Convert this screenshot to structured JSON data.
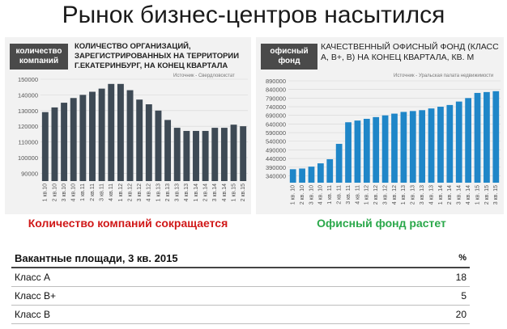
{
  "title": "Рынок бизнес-центров насытился",
  "left_panel": {
    "tag": "количество компаний",
    "title": "КОЛИЧЕСТВО ОРГАНИЗАЦИЙ, ЗАРЕГИСТРИРОВАННЫХ НА ТЕРРИТОРИИ Г.ЕКАТЕРИНБУРГ, НА КОНЕЦ КВАРТАЛА",
    "source": "Источник - Свердловскстат",
    "caption": "Количество компаний сокращается"
  },
  "right_panel": {
    "tag": "офисный фонд",
    "title": "КАЧЕСТВЕННЫЙ ОФИСНЫЙ ФОНД (КЛАСС А, В+, В) НА КОНЕЦ КВАРТАЛА, КВ. М",
    "source": "Источник - Уральская палата недвижимости",
    "caption": "Офисный фонд растет"
  },
  "chart_data": [
    {
      "type": "bar",
      "color": "#3e4a55",
      "categories": [
        "1 кв.10",
        "2 кв.10",
        "3 кв.10",
        "4 кв.10",
        "1 кв.11",
        "2 кв.11",
        "3 кв.11",
        "4 кв.11",
        "1 кв.12",
        "2 кв.12",
        "3 кв.12",
        "4 кв.12",
        "1 кв.13",
        "2 кв.13",
        "3 кв.13",
        "4 кв.13",
        "1 кв.14",
        "2 кв.14",
        "3 кв.14",
        "4 кв.14",
        "1 кв.15",
        "2 кв.15"
      ],
      "values": [
        129000,
        132000,
        135000,
        138000,
        140000,
        142000,
        144000,
        147000,
        147000,
        143000,
        137000,
        134000,
        130000,
        124000,
        119000,
        117000,
        117000,
        117000,
        119000,
        119000,
        121000,
        120000
      ],
      "ylim": [
        85000,
        150000
      ],
      "yticks": [
        "150000",
        "140000",
        "130000",
        "120000",
        "110000",
        "100000",
        "90000"
      ],
      "ytick_values": [
        150000,
        140000,
        130000,
        120000,
        110000,
        100000,
        90000
      ]
    },
    {
      "type": "bar",
      "color": "#1f86c8",
      "categories": [
        "1 кв. 10",
        "2 кв. 10",
        "3 кв. 10",
        "4 кв. 10",
        "1 кв. 11",
        "2 кв. 11",
        "3 кв. 11",
        "4 кв. 11",
        "1 кв. 12",
        "2 кв. 12",
        "3 кв. 12",
        "4 кв. 12",
        "1 кв. 13",
        "2 кв. 13",
        "3 кв. 13",
        "4 кв. 13",
        "1 кв. 14",
        "2 кв. 14",
        "3 кв. 14",
        "4 кв. 14",
        "1 кв. 15",
        "2 кв. 15",
        "3 кв. 15"
      ],
      "values": [
        378000,
        382000,
        393000,
        412000,
        436000,
        525000,
        650000,
        660000,
        670000,
        680000,
        690000,
        700000,
        710000,
        715000,
        720000,
        730000,
        740000,
        750000,
        770000,
        790000,
        820000,
        825000,
        830000
      ],
      "ylim": [
        300000,
        890000
      ],
      "yticks": [
        "890000",
        "790000",
        "690000",
        "590000",
        "490000",
        "390000"
      ],
      "ytick_values": [
        890000,
        790000,
        690000,
        590000,
        490000,
        390000
      ],
      "ytick_extra": [
        "840000",
        "740000",
        "640000",
        "540000",
        "440000",
        "340000"
      ],
      "ytick_extra_values": [
        840000,
        740000,
        640000,
        540000,
        440000,
        340000
      ]
    }
  ],
  "table": {
    "header": "Вакантные площади, 3 кв. 2015",
    "unit": "%",
    "rows": [
      {
        "label": "Класс А",
        "value": "18"
      },
      {
        "label": "Класс В+",
        "value": "5"
      },
      {
        "label": "Класс В",
        "value": "20"
      }
    ]
  }
}
